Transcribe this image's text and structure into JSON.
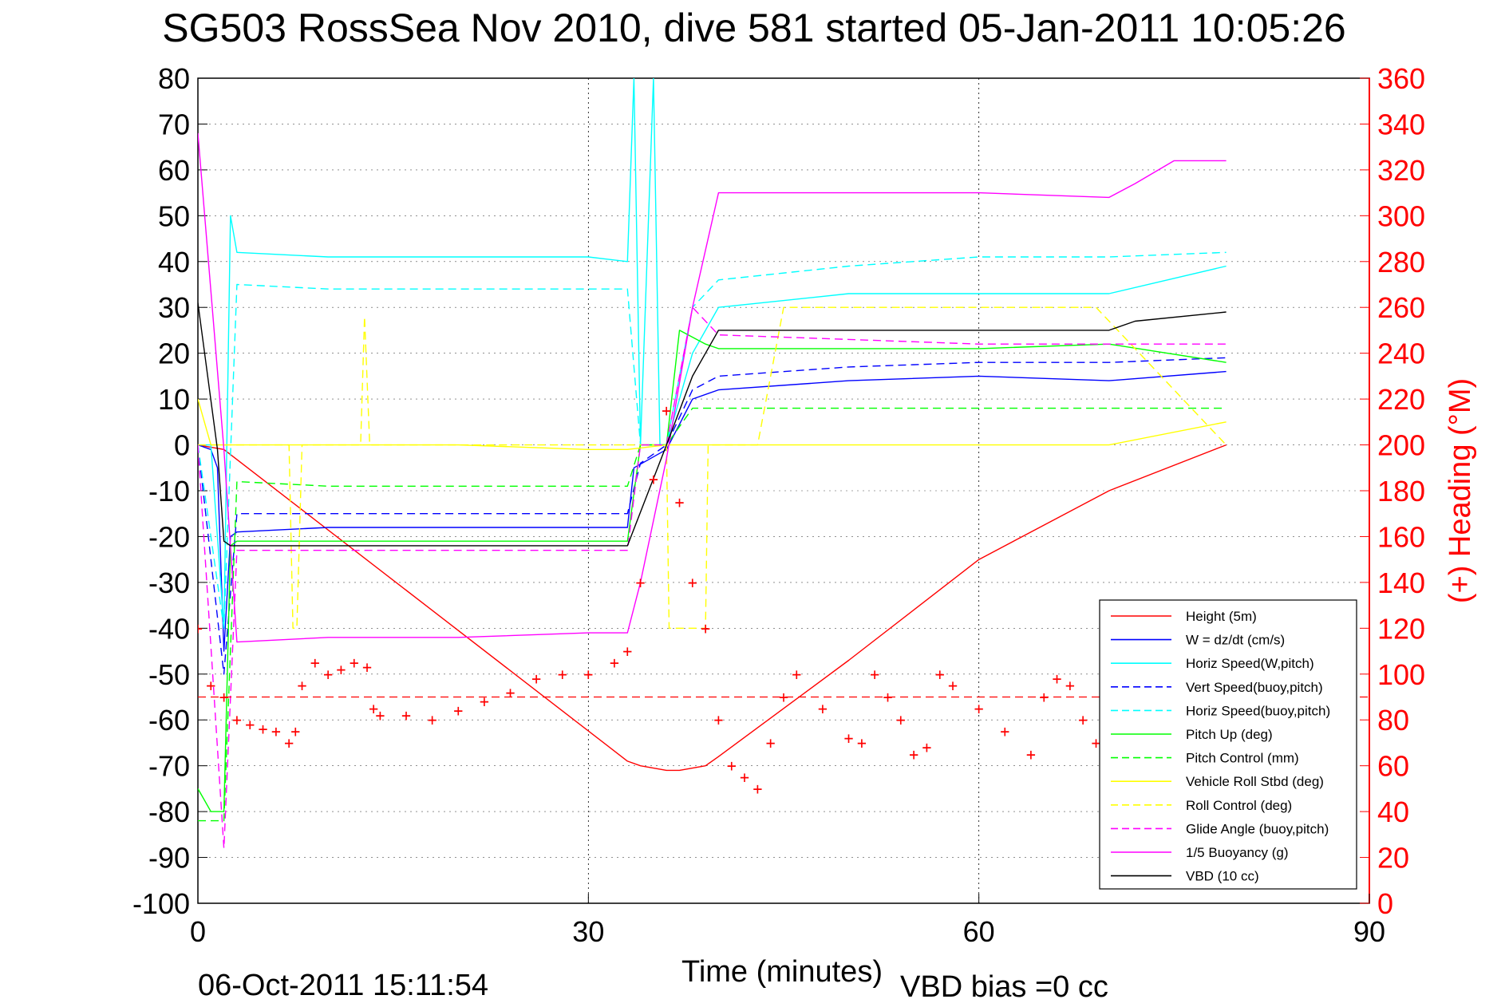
{
  "chart_data": {
    "type": "line",
    "title": "SG503 RossSea Nov 2010, dive 581 started 05-Jan-2011 10:05:26",
    "xlabel": "Time (minutes)",
    "ylabel": "",
    "y2label": "(+) Heading (°M)",
    "xlim": [
      0,
      90
    ],
    "ylim": [
      -100,
      80
    ],
    "y2lim": [
      0,
      360
    ],
    "x_ticks": [
      0,
      30,
      60,
      90
    ],
    "y_ticks": [
      80,
      70,
      60,
      50,
      40,
      30,
      20,
      10,
      0,
      -10,
      -20,
      -30,
      -40,
      -50,
      -60,
      -70,
      -80,
      -90,
      -100
    ],
    "y2_ticks": [
      360,
      340,
      320,
      300,
      280,
      260,
      240,
      220,
      200,
      180,
      160,
      140,
      120,
      100,
      80,
      60,
      40,
      20,
      0
    ],
    "grid": true,
    "legend_position": "bottom-right",
    "series": [
      {
        "name": "Height (5m)",
        "color": "#ff0000",
        "style": "solid",
        "x": [
          0,
          2,
          33,
          34,
          36,
          37,
          39,
          40,
          50,
          60,
          70,
          79
        ],
        "y": [
          0,
          -1,
          -69,
          -70,
          -71,
          -71,
          -70,
          -68,
          -47,
          -25,
          -10,
          0
        ]
      },
      {
        "name": "W = dz/dt (cm/s)",
        "color": "#0000ff",
        "style": "solid",
        "x": [
          0,
          1,
          1.5,
          2,
          2.5,
          3,
          10,
          20,
          30,
          33,
          33.5,
          36,
          38,
          40,
          50,
          60,
          70,
          79
        ],
        "y": [
          0,
          -1,
          -5,
          -45,
          -20,
          -19,
          -18,
          -18,
          -18,
          -18,
          -5,
          -1,
          10,
          12,
          14,
          15,
          14,
          16
        ]
      },
      {
        "name": "Horiz Speed(W,pitch)",
        "color": "#00ffff",
        "style": "solid",
        "x": [
          0,
          1,
          2,
          2.5,
          3,
          10,
          20,
          30,
          33,
          33.5,
          34,
          35,
          35.5,
          36,
          38,
          40,
          50,
          60,
          70,
          79
        ],
        "y": [
          0,
          0,
          -40,
          50,
          42,
          41,
          41,
          41,
          40,
          80,
          0,
          80,
          0,
          0,
          20,
          30,
          33,
          33,
          33,
          39
        ]
      },
      {
        "name": "Vert Speed(buoy,pitch)",
        "color": "#0000ff",
        "style": "dashed",
        "x": [
          0,
          2,
          3,
          10,
          20,
          30,
          33,
          34,
          36,
          38,
          40,
          50,
          60,
          70,
          79
        ],
        "y": [
          0,
          -50,
          -15,
          -15,
          -15,
          -15,
          -15,
          -4,
          0,
          12,
          15,
          17,
          18,
          18,
          19
        ]
      },
      {
        "name": "Horiz Speed(buoy,pitch)",
        "color": "#00ffff",
        "style": "dashed",
        "x": [
          0,
          2,
          3,
          10,
          20,
          30,
          33,
          34,
          36,
          38,
          40,
          50,
          60,
          70,
          79
        ],
        "y": [
          0,
          -40,
          35,
          34,
          34,
          34,
          34,
          0,
          0,
          30,
          36,
          39,
          41,
          41,
          42
        ]
      },
      {
        "name": "Pitch Up (deg)",
        "color": "#00ff00",
        "style": "solid",
        "x": [
          0,
          1,
          2,
          2.5,
          3,
          10,
          20,
          30,
          33,
          34,
          36,
          37,
          39,
          40,
          50,
          60,
          70,
          79
        ],
        "y": [
          -75,
          -80,
          -80,
          -22,
          -21,
          -21,
          -21,
          -21,
          -21,
          0,
          0,
          25,
          22,
          21,
          21,
          21,
          22,
          18
        ]
      },
      {
        "name": "Pitch Control (mm)",
        "color": "#00ff00",
        "style": "dashed",
        "x": [
          0,
          2,
          3,
          10,
          20,
          30,
          33,
          34,
          36,
          38,
          40,
          79
        ],
        "y": [
          -82,
          -82,
          -8,
          -9,
          -9,
          -9,
          -9,
          0,
          0,
          8,
          8,
          8
        ]
      },
      {
        "name": "Vehicle Roll Stbd (deg)",
        "color": "#ffff00",
        "style": "solid",
        "x": [
          0,
          1,
          2,
          5,
          10,
          20,
          30,
          33,
          36,
          40,
          50,
          60,
          70,
          79
        ],
        "y": [
          10,
          0,
          0,
          0,
          0,
          0,
          -1,
          -1,
          0,
          0,
          0,
          0,
          0,
          5
        ]
      },
      {
        "name": "Roll Control (deg)",
        "color": "#ffff00",
        "style": "dashed",
        "x": [
          0,
          2,
          7,
          7.3,
          7.6,
          8,
          12.5,
          12.8,
          13.2,
          20,
          30,
          36,
          36.2,
          39,
          39.2,
          43,
          45,
          52,
          57,
          64,
          69,
          79
        ],
        "y": [
          0,
          0,
          0,
          -40,
          -40,
          0,
          0,
          28,
          0,
          0,
          0,
          0,
          -40,
          -40,
          0,
          0,
          30,
          30,
          30,
          30,
          30,
          0
        ]
      },
      {
        "name": "Glide Angle (buoy,pitch)",
        "color": "#ff00ff",
        "style": "dashed",
        "x": [
          0,
          2,
          3,
          10,
          20,
          30,
          33,
          34,
          36,
          38,
          40,
          50,
          60,
          70,
          79
        ],
        "y": [
          0,
          -88,
          -23,
          -23,
          -23,
          -23,
          -23,
          0,
          0,
          30,
          24,
          23,
          22,
          22,
          22
        ]
      },
      {
        "name": "1/5 Buoyancy (g)",
        "color": "#ff00ff",
        "style": "solid",
        "x": [
          0,
          2,
          3,
          10,
          20,
          30,
          33,
          34,
          36,
          38,
          40,
          50,
          60,
          70,
          72,
          75,
          79
        ],
        "y": [
          68,
          -1,
          -43,
          -42,
          -42,
          -41,
          -41,
          -30,
          -3,
          30,
          55,
          55,
          55,
          54,
          57,
          62,
          62
        ]
      },
      {
        "name": "VBD (10 cc)",
        "color": "#000000",
        "style": "solid",
        "x": [
          0,
          1.5,
          2,
          2.5,
          3,
          10,
          20,
          30,
          33,
          36,
          38,
          40,
          50,
          60,
          70,
          72,
          79
        ],
        "y": [
          31,
          -1,
          -21,
          -22,
          -22,
          -22,
          -22,
          -22,
          -22,
          0,
          15,
          25,
          25,
          25,
          25,
          27,
          29
        ]
      }
    ],
    "heading_series": {
      "name": "(+) Heading",
      "color": "#ff0000",
      "marker": "+",
      "x": [
        0,
        1,
        2,
        3,
        4,
        5,
        6,
        7,
        7.5,
        8,
        9,
        10,
        11,
        12,
        13,
        13.5,
        14,
        16,
        18,
        20,
        22,
        24,
        26,
        28,
        30,
        32,
        33,
        34,
        35,
        36,
        37,
        38,
        39,
        40,
        41,
        42,
        43,
        44,
        45,
        46,
        48,
        50,
        51,
        52,
        53,
        54,
        55,
        56,
        57,
        58,
        60,
        62,
        64,
        65,
        66,
        67,
        68,
        69,
        70
      ],
      "heading": [
        120,
        95,
        90,
        80,
        78,
        76,
        75,
        70,
        75,
        95,
        105,
        100,
        102,
        105,
        103,
        85,
        82,
        82,
        80,
        84,
        88,
        92,
        98,
        100,
        100,
        105,
        110,
        140,
        185,
        215,
        175,
        140,
        120,
        80,
        60,
        55,
        50,
        70,
        90,
        100,
        85,
        72,
        70,
        100,
        90,
        80,
        65,
        68,
        100,
        95,
        85,
        75,
        65,
        90,
        98,
        95,
        80,
        70,
        65
      ]
    },
    "heading_reference": {
      "value": 90,
      "style": "dashed",
      "color": "#ff0000"
    },
    "markers_note": "",
    "timestamp": "06-Oct-2011 15:11:54",
    "vbd_bias": "VBD bias =0 cc"
  }
}
